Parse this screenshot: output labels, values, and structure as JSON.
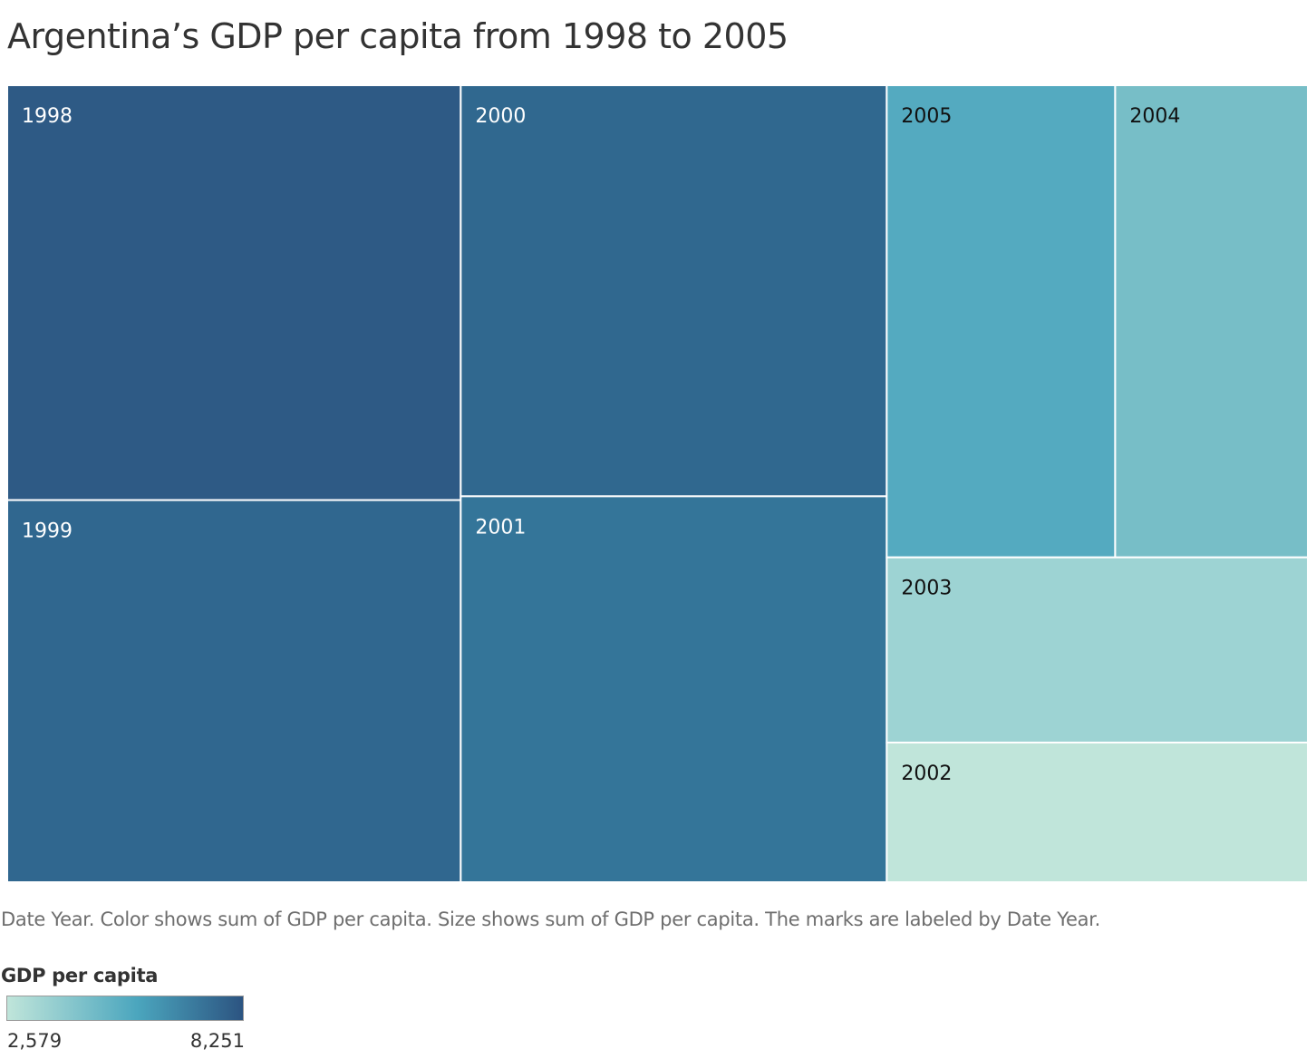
{
  "title": "Argentina’s GDP per capita from 1998 to 2005",
  "caption": "Date Year.  Color shows sum of GDP per capita.  Size shows sum of GDP per capita.  The marks are labeled by Date Year.",
  "legend": {
    "title": "GDP per capita",
    "min_label": "2,579",
    "max_label": "8,251",
    "color_low": "#c0e5da",
    "color_mid": "#4ba6be",
    "color_high": "#2c5481"
  },
  "chart_data": {
    "type": "treemap",
    "title": "Argentina’s GDP per capita from 1998 to 2005",
    "size_measure": "sum of GDP per capita",
    "color_measure": "sum of GDP per capita",
    "label_field": "Date Year",
    "color_range": [
      2579,
      8251
    ],
    "items": [
      {
        "label": "1998",
        "value": 8251,
        "color": "#2e5a85",
        "text_color": "#ffffff"
      },
      {
        "label": "2000",
        "value": 7680,
        "color": "#30688f",
        "text_color": "#ffffff"
      },
      {
        "label": "1999",
        "value": 7600,
        "color": "#30678f",
        "text_color": "#ffffff"
      },
      {
        "label": "2001",
        "value": 7210,
        "color": "#347599",
        "text_color": "#ffffff"
      },
      {
        "label": "2005",
        "value": 4730,
        "color": "#54aac0",
        "text_color": "#111111"
      },
      {
        "label": "2004",
        "value": 3990,
        "color": "#77bec7",
        "text_color": "#111111"
      },
      {
        "label": "2003",
        "value": 3420,
        "color": "#9dd3d3",
        "text_color": "#111111"
      },
      {
        "label": "2002",
        "value": 2579,
        "color": "#c0e5da",
        "text_color": "#111111"
      }
    ]
  }
}
